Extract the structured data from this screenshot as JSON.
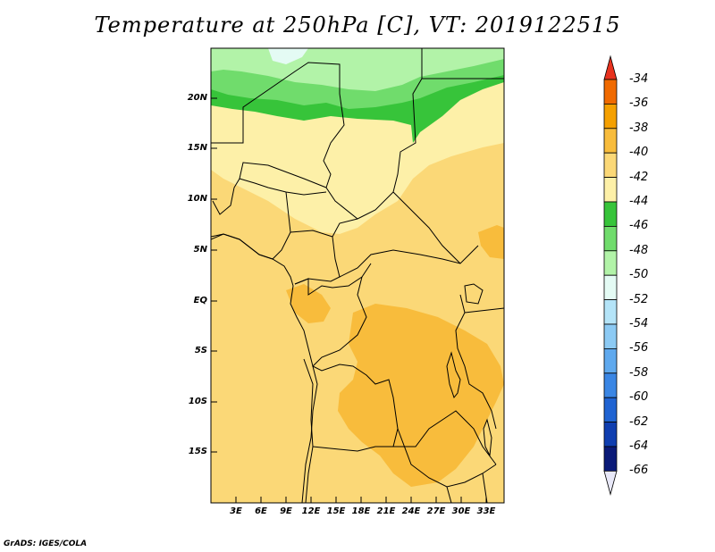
{
  "title": "Temperature at 250hPa [C], VT: 2019122515",
  "credit": "GrADS: IGES/COLA",
  "map": {
    "lat_labels": [
      "20N",
      "15N",
      "10N",
      "5N",
      "EQ",
      "5S",
      "10S",
      "15S"
    ],
    "lon_labels": [
      "3E",
      "6E",
      "9E",
      "12E",
      "15E",
      "18E",
      "21E",
      "24E",
      "27E",
      "30E",
      "33E"
    ]
  },
  "colorbar": {
    "labels": [
      "-34",
      "-36",
      "-38",
      "-40",
      "-42",
      "-44",
      "-46",
      "-48",
      "-50",
      "-52",
      "-54",
      "-56",
      "-58",
      "-60",
      "-62",
      "-64",
      "-66"
    ],
    "colors": [
      "#e8321e",
      "#f06a00",
      "#f5a000",
      "#f8bc3c",
      "#fbd877",
      "#fdf0a8",
      "#37c43a",
      "#70dc6c",
      "#b2f3a8",
      "#e4fbf4",
      "#b4e4f8",
      "#8ccaf4",
      "#5fa9ee",
      "#3a86e4",
      "#1f63d2",
      "#0f3eb0",
      "#0a1a78",
      "#e8e8f8"
    ]
  }
}
